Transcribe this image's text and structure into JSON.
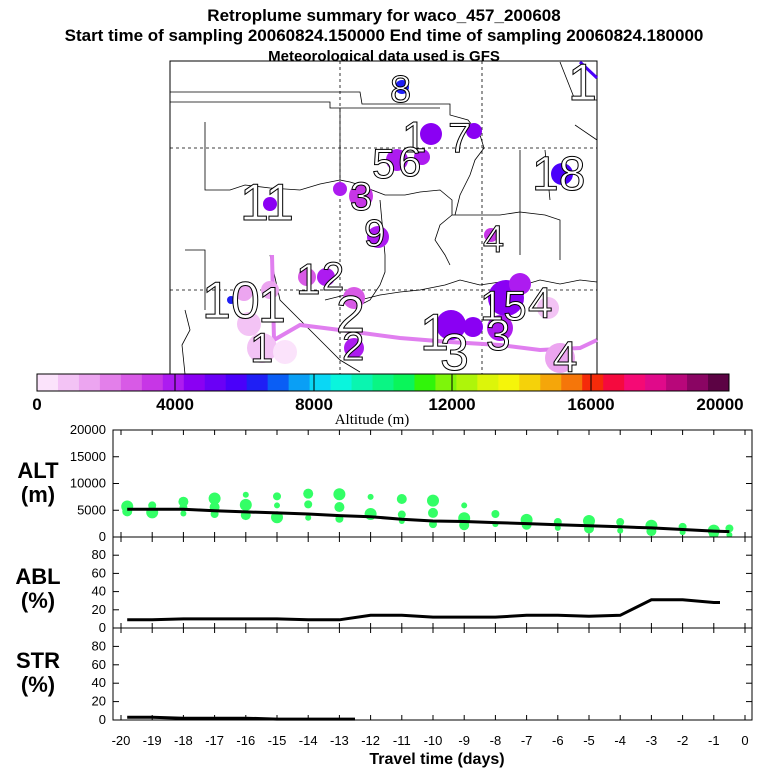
{
  "title": {
    "line1": "Retroplume summary for waco_457_200608",
    "line2": "Start time of sampling 20060824.150000     End time of sampling 20060824.180000",
    "line3": "Meteorological data used is GFS"
  },
  "colorbar": {
    "label": "Altitude (m)",
    "ticks": [
      "0",
      "4000",
      "8000",
      "12000",
      "16000",
      "20000"
    ],
    "colors": [
      "#fbe3fb",
      "#f3c3f5",
      "#eca5f0",
      "#e37fea",
      "#d85ae6",
      "#c736e6",
      "#ad1bf0",
      "#8a00f3",
      "#6a00f6",
      "#4a00fa",
      "#1f1ff5",
      "#0a5ef5",
      "#0a9ff5",
      "#0ad7f5",
      "#0af5dd",
      "#0af5b0",
      "#0af584",
      "#0af55a",
      "#31f50a",
      "#7ef50a",
      "#aef50a",
      "#dcf50a",
      "#f5f50a",
      "#f5d20a",
      "#f5a60a",
      "#f5760a",
      "#f52b0a",
      "#f50a3e",
      "#f50a75",
      "#e00a8a",
      "#b8077a",
      "#8a0563",
      "#5c0344"
    ]
  },
  "map": {
    "points": [
      {
        "lon": 0.55,
        "lat": 0.82,
        "r": 7,
        "color": "#1f1ff5"
      },
      {
        "lon": 0.72,
        "lat": 0.95,
        "r": 12,
        "color": "#8a00f3"
      },
      {
        "lon": 0.28,
        "lat": 0.27,
        "r": 8,
        "color": "#ad1bf0"
      },
      {
        "lon": 0.84,
        "lat": 0.17,
        "r": 8,
        "color": "#c736e6"
      },
      {
        "lon": 0.4,
        "lat": 0.45,
        "r": 12,
        "color": "#ad1bf0"
      },
      {
        "lon": 0.36,
        "lat": 0.5,
        "r": 8,
        "color": "#c736e6"
      },
      {
        "lon": 0.5,
        "lat": 0.12,
        "r": 11,
        "color": "#ad1bf0"
      },
      {
        "lon": 0.68,
        "lat": 0.93,
        "r": 9,
        "color": "#c736e6"
      },
      {
        "lon": 0.66,
        "lat": 0.83,
        "r": 10,
        "color": "#d85ae6"
      },
      {
        "lon": 0.3,
        "lat": 0.42,
        "r": 10,
        "color": "#d85ae6"
      }
    ],
    "labels": [
      {
        "text": "8",
        "size": 38
      },
      {
        "text": "1",
        "size": 52
      },
      {
        "text": "1",
        "size": 48
      },
      {
        "text": "7",
        "size": 42
      },
      {
        "text": "5",
        "size": 42
      },
      {
        "text": "6",
        "size": 42
      },
      {
        "text": "18",
        "size": 48
      },
      {
        "text": "11",
        "size": 52
      },
      {
        "text": "3",
        "size": 44
      },
      {
        "text": "9",
        "size": 38
      },
      {
        "text": "4",
        "size": 38
      },
      {
        "text": "1",
        "size": 44
      },
      {
        "text": "2",
        "size": 40
      },
      {
        "text": "10",
        "size": 52
      },
      {
        "text": "1",
        "size": 50
      },
      {
        "text": "1",
        "size": 42
      },
      {
        "text": "2",
        "size": 52
      },
      {
        "text": "2",
        "size": 40
      },
      {
        "text": "1",
        "size": 52
      },
      {
        "text": "3",
        "size": 52
      },
      {
        "text": "3",
        "size": 44
      },
      {
        "text": "15",
        "size": 42
      },
      {
        "text": "4",
        "size": 44
      },
      {
        "text": "4",
        "size": 44
      }
    ]
  },
  "chart_data": [
    {
      "type": "scatter",
      "panel": "ALT",
      "ylabel": "ALT (m)",
      "ylim": [
        0,
        20000
      ],
      "yticks": [
        0,
        5000,
        10000,
        15000,
        20000
      ],
      "xlim": [
        -20,
        0
      ],
      "scatter_color": "#33ff66",
      "points": [
        {
          "x": -19.8,
          "y": 5300
        },
        {
          "x": -19.8,
          "y": 5700
        },
        {
          "x": -19.8,
          "y": 4800
        },
        {
          "x": -19.0,
          "y": 5900
        },
        {
          "x": -19.0,
          "y": 5200
        },
        {
          "x": -19.0,
          "y": 4600
        },
        {
          "x": -18.0,
          "y": 6600
        },
        {
          "x": -18.0,
          "y": 5500
        },
        {
          "x": -18.0,
          "y": 4400
        },
        {
          "x": -17.0,
          "y": 7200
        },
        {
          "x": -17.0,
          "y": 5600
        },
        {
          "x": -17.0,
          "y": 4300
        },
        {
          "x": -16.0,
          "y": 7900
        },
        {
          "x": -16.0,
          "y": 6000
        },
        {
          "x": -16.0,
          "y": 4100
        },
        {
          "x": -15.0,
          "y": 7600
        },
        {
          "x": -15.0,
          "y": 5900
        },
        {
          "x": -15.0,
          "y": 3700
        },
        {
          "x": -14.0,
          "y": 8100
        },
        {
          "x": -14.0,
          "y": 6100
        },
        {
          "x": -14.0,
          "y": 3600
        },
        {
          "x": -13.0,
          "y": 8000
        },
        {
          "x": -13.0,
          "y": 5600
        },
        {
          "x": -13.0,
          "y": 3400
        },
        {
          "x": -12.0,
          "y": 7500
        },
        {
          "x": -12.0,
          "y": 4300
        },
        {
          "x": -11.0,
          "y": 7100
        },
        {
          "x": -11.0,
          "y": 4200
        },
        {
          "x": -11.0,
          "y": 3000
        },
        {
          "x": -10.0,
          "y": 6800
        },
        {
          "x": -10.0,
          "y": 4500
        },
        {
          "x": -10.0,
          "y": 2400
        },
        {
          "x": -9.0,
          "y": 5900
        },
        {
          "x": -9.0,
          "y": 3500
        },
        {
          "x": -9.0,
          "y": 2200
        },
        {
          "x": -8.0,
          "y": 4300
        },
        {
          "x": -8.0,
          "y": 2400
        },
        {
          "x": -7.0,
          "y": 3200
        },
        {
          "x": -7.0,
          "y": 2300
        },
        {
          "x": -6.0,
          "y": 2800
        },
        {
          "x": -6.0,
          "y": 1700
        },
        {
          "x": -5.0,
          "y": 3000
        },
        {
          "x": -5.0,
          "y": 1600
        },
        {
          "x": -4.0,
          "y": 2800
        },
        {
          "x": -4.0,
          "y": 1200
        },
        {
          "x": -3.0,
          "y": 2100
        },
        {
          "x": -3.0,
          "y": 1100
        },
        {
          "x": -2.0,
          "y": 1900
        },
        {
          "x": -2.0,
          "y": 900
        },
        {
          "x": -1.0,
          "y": 1200
        },
        {
          "x": -1.0,
          "y": 600
        },
        {
          "x": -0.5,
          "y": 1600
        },
        {
          "x": -0.5,
          "y": 400
        }
      ],
      "line": {
        "x": [
          -19.8,
          -19,
          -18,
          -17,
          -16,
          -15,
          -14,
          -13,
          -12,
          -11,
          -10,
          -9,
          -8,
          -7,
          -6,
          -5,
          -4,
          -3,
          -2,
          -1,
          -0.5
        ],
        "y": [
          5200,
          5200,
          5200,
          4900,
          4700,
          4500,
          4300,
          4000,
          3800,
          3300,
          3000,
          2900,
          2700,
          2500,
          2300,
          2100,
          1900,
          1700,
          1400,
          1100,
          1000
        ]
      }
    },
    {
      "type": "line",
      "panel": "ABL",
      "ylabel": "ABL (%)",
      "ylim": [
        0,
        100
      ],
      "yticks": [
        0,
        20,
        40,
        60,
        80
      ],
      "xlim": [
        -20,
        0
      ],
      "x": [
        -19.8,
        -19,
        -18,
        -17,
        -16,
        -15,
        -14,
        -13,
        -12,
        -11,
        -10,
        -9,
        -8,
        -7,
        -6,
        -5,
        -4,
        -3,
        -2,
        -1,
        -0.8
      ],
      "values": [
        9,
        9,
        10,
        10,
        10,
        10,
        9,
        9,
        14,
        14,
        12,
        12,
        12,
        14,
        14,
        13,
        14,
        31,
        31,
        28,
        28
      ]
    },
    {
      "type": "line",
      "panel": "STR",
      "ylabel": "STR (%)",
      "ylim": [
        0,
        100
      ],
      "yticks": [
        0,
        20,
        40,
        60,
        80
      ],
      "xlim": [
        -20,
        0
      ],
      "x": [
        -19.8,
        -19,
        -18,
        -17,
        -16,
        -15,
        -14,
        -13,
        -12.5
      ],
      "values": [
        3,
        3,
        2,
        2,
        2,
        1,
        1,
        1,
        1
      ]
    }
  ],
  "xaxis": {
    "label": "Travel time (days)",
    "ticks": [
      "-20",
      "-19",
      "-18",
      "-17",
      "-16",
      "-15",
      "-14",
      "-13",
      "-12",
      "-11",
      "-10",
      "-9",
      "-8",
      "-7",
      "-6",
      "-5",
      "-4",
      "-3",
      "-2",
      "-1",
      "0"
    ]
  },
  "panel_labels": {
    "alt_top": "ALT",
    "alt_bot": "(m)",
    "abl_top": "ABL",
    "abl_bot": "(%)",
    "str_top": "STR",
    "str_bot": "(%)"
  }
}
